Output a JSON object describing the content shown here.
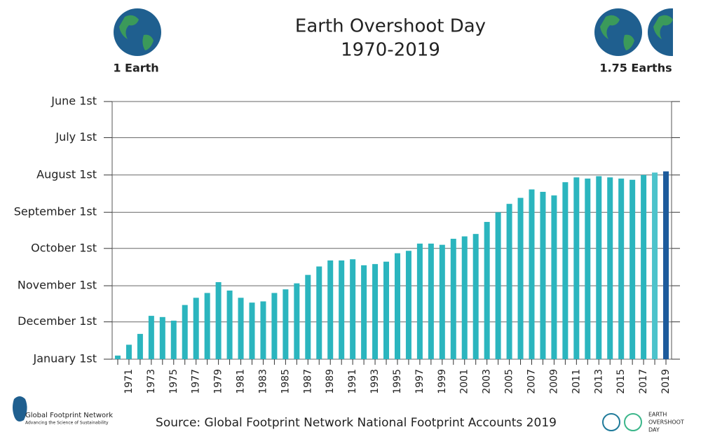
{
  "chart_data": {
    "type": "bar",
    "title": "Earth Overshoot Day",
    "subtitle": "1970-2019",
    "categories": [
      null,
      "1971",
      null,
      "1973",
      null,
      "1975",
      null,
      "1977",
      null,
      "1979",
      null,
      "1981",
      null,
      "1983",
      null,
      "1985",
      null,
      "1987",
      null,
      "1989",
      null,
      "1991",
      null,
      "1993",
      null,
      "1995",
      null,
      "1997",
      null,
      "1999",
      null,
      "2001",
      null,
      "2003",
      null,
      "2005",
      null,
      "2007",
      null,
      "2009",
      null,
      "2011",
      null,
      "2013",
      null,
      "2015",
      null,
      "2017",
      null,
      "2019"
    ],
    "values": [
      363,
      354,
      345,
      330,
      331,
      334,
      321,
      315,
      311,
      302,
      309,
      315,
      319,
      318,
      311,
      308,
      303,
      296,
      289,
      284,
      284,
      283,
      288,
      287,
      285,
      278,
      276,
      270,
      270,
      271,
      266,
      264,
      262,
      252,
      244,
      237,
      232,
      225,
      227,
      230,
      219,
      215,
      216,
      214,
      215,
      216,
      217,
      213,
      211,
      210
    ],
    "colors": [
      "#2bb5be",
      "#2bb5be",
      "#2bb5be",
      "#2bb5be",
      "#2bb5be",
      "#2bb5be",
      "#2bb5be",
      "#2bb5be",
      "#2bb5be",
      "#2bb5be",
      "#2bb5be",
      "#2bb5be",
      "#2bb5be",
      "#2bb5be",
      "#2bb5be",
      "#2bb5be",
      "#2bb5be",
      "#2bb5be",
      "#2bb5be",
      "#2bb5be",
      "#2bb5be",
      "#2bb5be",
      "#2bb5be",
      "#2bb5be",
      "#2bb5be",
      "#2bb5be",
      "#2bb5be",
      "#2bb5be",
      "#2bb5be",
      "#2bb5be",
      "#2bb5be",
      "#2bb5be",
      "#2bb5be",
      "#2bb5be",
      "#2bb5be",
      "#2bb5be",
      "#2bb5be",
      "#2bb5be",
      "#2bb5be",
      "#2bb5be",
      "#2bb5be",
      "#2bb5be",
      "#2bb5be",
      "#2bb5be",
      "#2bb5be",
      "#2bb5be",
      "#2bb5be",
      "#2bb5be",
      "#4cc3cb",
      "#1d5b9c"
    ],
    "ylim": [
      366,
      152
    ],
    "yticks": [
      {
        "value": 152,
        "label": "June 1st"
      },
      {
        "value": 182,
        "label": "July 1st"
      },
      {
        "value": 213,
        "label": "August 1st"
      },
      {
        "value": 244,
        "label": "September 1st"
      },
      {
        "value": 274,
        "label": "October 1st"
      },
      {
        "value": 305,
        "label": "November 1st"
      },
      {
        "value": 335,
        "label": "December 1st"
      },
      {
        "value": 366,
        "label": "January 1st"
      }
    ],
    "grid": true
  },
  "left_label": "1 Earth",
  "right_label": "1.75 Earths",
  "source": "Source: Global Footprint Network National Footprint Accounts 2019",
  "logo_left": {
    "name": "Global Footprint Network",
    "tagline": "Advancing the Science of Sustainability"
  },
  "logo_right": [
    "EARTH",
    "OVERSHOOT",
    "DAY"
  ]
}
